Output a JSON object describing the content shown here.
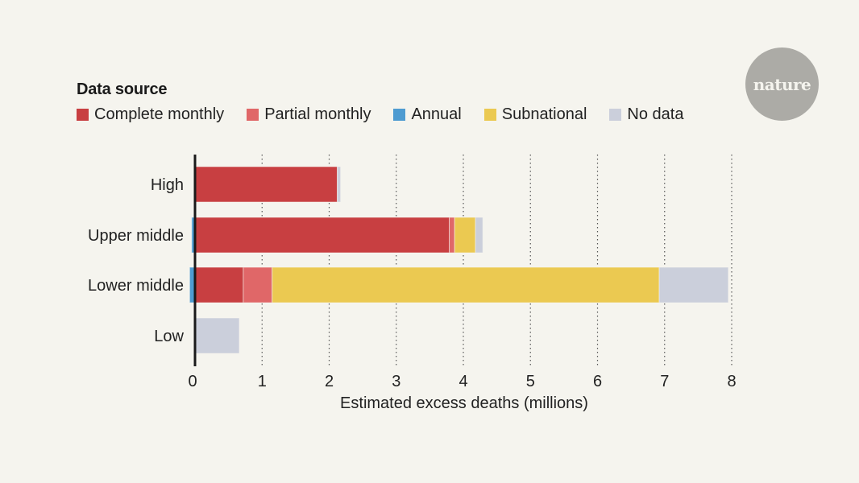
{
  "branding": {
    "logo_text": "nature"
  },
  "legend": {
    "title": "Data source",
    "items": [
      {
        "key": "complete_monthly",
        "label": "Complete monthly",
        "color": "#c83f41"
      },
      {
        "key": "partial_monthly",
        "label": "Partial monthly",
        "color": "#e06768"
      },
      {
        "key": "annual",
        "label": "Annual",
        "color": "#4e9bd1"
      },
      {
        "key": "subnational",
        "label": "Subnational",
        "color": "#ebc951"
      },
      {
        "key": "no_data",
        "label": "No data",
        "color": "#cbcfdb"
      }
    ]
  },
  "chart_data": {
    "type": "bar",
    "orientation": "horizontal",
    "stacked": true,
    "title": "",
    "legend_title": "Data source",
    "legend_position": "top-left",
    "categories": [
      "High",
      "Upper middle",
      "Lower middle",
      "Low"
    ],
    "xlabel": "Estimated excess deaths (millions)",
    "ylabel": "",
    "xlim": [
      0,
      8
    ],
    "xticks": [
      "0",
      "1",
      "2",
      "3",
      "4",
      "5",
      "6",
      "7",
      "8"
    ],
    "grid": "vertical dotted",
    "series": [
      {
        "name": "Annual",
        "color": "#4e9bd1",
        "values": [
          0,
          -0.05,
          -0.08,
          0
        ]
      },
      {
        "name": "Complete monthly",
        "color": "#c83f41",
        "values": [
          2.12,
          3.79,
          0.72,
          0
        ]
      },
      {
        "name": "Partial monthly",
        "color": "#e06768",
        "values": [
          0,
          0.08,
          0.43,
          0
        ]
      },
      {
        "name": "Subnational",
        "color": "#ebc951",
        "values": [
          0,
          0.31,
          5.77,
          0
        ]
      },
      {
        "name": "No data",
        "color": "#cbcfdb",
        "values": [
          0.05,
          0.11,
          1.03,
          0.66
        ]
      }
    ]
  }
}
